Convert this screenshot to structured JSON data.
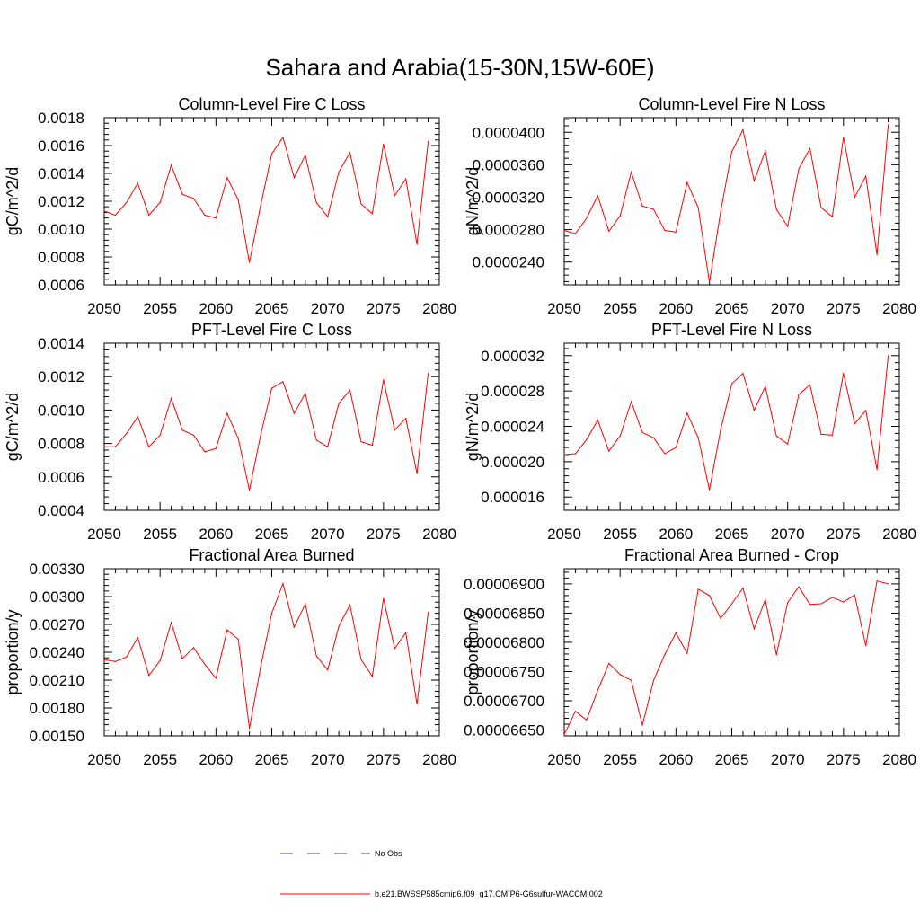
{
  "page_title": "Sahara and Arabia(15-30N,15W-60E)",
  "chart_data": [
    {
      "type": "line",
      "title": "Column-Level Fire C Loss",
      "ylabel": "gC/m^2/d",
      "xlim": [
        2050,
        2080
      ],
      "ylim": [
        0.0006,
        0.0018
      ],
      "x_ticks": [
        "2050",
        "2055",
        "2060",
        "2065",
        "2070",
        "2075",
        "2080"
      ],
      "y_ticks": [
        "0.0006",
        "0.0008",
        "0.0010",
        "0.0012",
        "0.0014",
        "0.0016",
        "0.0018"
      ],
      "x": [
        2050,
        2051,
        2052,
        2053,
        2054,
        2055,
        2056,
        2057,
        2058,
        2059,
        2060,
        2061,
        2062,
        2063,
        2064,
        2065,
        2066,
        2067,
        2068,
        2069,
        2070,
        2071,
        2072,
        2073,
        2074,
        2075,
        2076,
        2077,
        2078,
        2079
      ],
      "series": [
        {
          "name": "b.e21.BWSSP585cmip6.f09_g17.CMIP6-G6sulfur-WACCM.002",
          "color": "#ff0000",
          "values": [
            0.00113,
            0.0011,
            0.00119,
            0.00133,
            0.0011,
            0.00119,
            0.00146,
            0.00125,
            0.00122,
            0.0011,
            0.00108,
            0.00137,
            0.00121,
            0.00076,
            0.00117,
            0.00154,
            0.00166,
            0.00137,
            0.00153,
            0.00119,
            0.00109,
            0.00141,
            0.00155,
            0.00118,
            0.00111,
            0.00161,
            0.00124,
            0.00136,
            0.00089,
            0.00163
          ]
        }
      ]
    },
    {
      "type": "line",
      "title": "Column-Level Fire N Loss",
      "ylabel": "gN/m^2/d",
      "xlim": [
        2050,
        2080
      ],
      "ylim": [
        2.12e-05,
        4.18e-05
      ],
      "x_ticks": [
        "2050",
        "2055",
        "2060",
        "2065",
        "2070",
        "2075",
        "2080"
      ],
      "y_ticks": [
        "0.0000240",
        "0.0000280",
        "0.0000320",
        "0.0000360",
        "0.0000400"
      ],
      "x": [
        2050,
        2051,
        2052,
        2053,
        2054,
        2055,
        2056,
        2057,
        2058,
        2059,
        2060,
        2061,
        2062,
        2063,
        2064,
        2065,
        2066,
        2067,
        2068,
        2069,
        2070,
        2071,
        2072,
        2073,
        2074,
        2075,
        2076,
        2077,
        2078,
        2079
      ],
      "series": [
        {
          "name": "b.e21.BWSSP585cmip6.f09_g17.CMIP6-G6sulfur-WACCM.002",
          "color": "#ff0000",
          "values": [
            2.79e-05,
            2.75e-05,
            2.94e-05,
            3.22e-05,
            2.78e-05,
            2.97e-05,
            3.51e-05,
            3.09e-05,
            3.05e-05,
            2.79e-05,
            2.77e-05,
            3.38e-05,
            3.07e-05,
            2.15e-05,
            3.02e-05,
            3.76e-05,
            4.03e-05,
            3.4e-05,
            3.77e-05,
            3.05e-05,
            2.84e-05,
            3.55e-05,
            3.8e-05,
            3.07e-05,
            2.96e-05,
            3.94e-05,
            3.2e-05,
            3.46e-05,
            2.49e-05,
            4.09e-05
          ]
        }
      ]
    },
    {
      "type": "line",
      "title": "PFT-Level Fire C Loss",
      "ylabel": "gC/m^2/d",
      "xlim": [
        2050,
        2080
      ],
      "ylim": [
        0.0004,
        0.0014
      ],
      "x_ticks": [
        "2050",
        "2055",
        "2060",
        "2065",
        "2070",
        "2075",
        "2080"
      ],
      "y_ticks": [
        "0.0004",
        "0.0006",
        "0.0008",
        "0.0010",
        "0.0012",
        "0.0014"
      ],
      "x": [
        2050,
        2051,
        2052,
        2053,
        2054,
        2055,
        2056,
        2057,
        2058,
        2059,
        2060,
        2061,
        2062,
        2063,
        2064,
        2065,
        2066,
        2067,
        2068,
        2069,
        2070,
        2071,
        2072,
        2073,
        2074,
        2075,
        2076,
        2077,
        2078,
        2079
      ],
      "series": [
        {
          "name": "b.e21.BWSSP585cmip6.f09_g17.CMIP6-G6sulfur-WACCM.002",
          "color": "#ff0000",
          "values": [
            0.00078,
            0.00078,
            0.00086,
            0.00096,
            0.00078,
            0.00085,
            0.00107,
            0.00088,
            0.00085,
            0.00075,
            0.00077,
            0.00098,
            0.00083,
            0.00052,
            0.00085,
            0.00113,
            0.00117,
            0.00098,
            0.0011,
            0.00082,
            0.00078,
            0.00104,
            0.00112,
            0.00081,
            0.00079,
            0.00118,
            0.00088,
            0.00095,
            0.00062,
            0.00122
          ]
        }
      ]
    },
    {
      "type": "line",
      "title": "PFT-Level Fire N Loss",
      "ylabel": "gN/m^2/d",
      "xlim": [
        2050,
        2080
      ],
      "ylim": [
        1.45e-05,
        3.34e-05
      ],
      "x_ticks": [
        "2050",
        "2055",
        "2060",
        "2065",
        "2070",
        "2075",
        "2080"
      ],
      "y_ticks": [
        "0.000016",
        "0.000020",
        "0.000024",
        "0.000028",
        "0.000032"
      ],
      "x": [
        2050,
        2051,
        2052,
        2053,
        2054,
        2055,
        2056,
        2057,
        2058,
        2059,
        2060,
        2061,
        2062,
        2063,
        2064,
        2065,
        2066,
        2067,
        2068,
        2069,
        2070,
        2071,
        2072,
        2073,
        2074,
        2075,
        2076,
        2077,
        2078,
        2079
      ],
      "series": [
        {
          "name": "b.e21.BWSSP585cmip6.f09_g17.CMIP6-G6sulfur-WACCM.002",
          "color": "#ff0000",
          "values": [
            2.08e-05,
            2.09e-05,
            2.25e-05,
            2.47e-05,
            2.12e-05,
            2.29e-05,
            2.68e-05,
            2.33e-05,
            2.27e-05,
            2.09e-05,
            2.16e-05,
            2.55e-05,
            2.27e-05,
            1.68e-05,
            2.36e-05,
            2.88e-05,
            3e-05,
            2.58e-05,
            2.85e-05,
            2.29e-05,
            2.2e-05,
            2.76e-05,
            2.87e-05,
            2.31e-05,
            2.3e-05,
            3e-05,
            2.43e-05,
            2.58e-05,
            1.91e-05,
            3.2e-05
          ]
        }
      ]
    },
    {
      "type": "line",
      "title": "Fractional Area Burned",
      "ylabel": "proportion/y",
      "xlim": [
        2050,
        2080
      ],
      "ylim": [
        0.0015,
        0.0033
      ],
      "x_ticks": [
        "2050",
        "2055",
        "2060",
        "2065",
        "2070",
        "2075",
        "2080"
      ],
      "y_ticks": [
        "0.00150",
        "0.00180",
        "0.00210",
        "0.00240",
        "0.00270",
        "0.00300",
        "0.00330"
      ],
      "x": [
        2050,
        2051,
        2052,
        2053,
        2054,
        2055,
        2056,
        2057,
        2058,
        2059,
        2060,
        2061,
        2062,
        2063,
        2064,
        2065,
        2066,
        2067,
        2068,
        2069,
        2070,
        2071,
        2072,
        2073,
        2074,
        2075,
        2076,
        2077,
        2078,
        2079
      ],
      "series": [
        {
          "name": "b.e21.BWSSP585cmip6.f09_g17.CMIP6-G6sulfur-WACCM.002",
          "color": "#ff0000",
          "values": [
            0.00232,
            0.0023,
            0.00235,
            0.00256,
            0.00215,
            0.00231,
            0.00272,
            0.00233,
            0.00245,
            0.00227,
            0.00212,
            0.00264,
            0.00254,
            0.00158,
            0.00224,
            0.00282,
            0.00314,
            0.00267,
            0.00292,
            0.00236,
            0.00221,
            0.00268,
            0.00291,
            0.00232,
            0.00214,
            0.00298,
            0.00244,
            0.00261,
            0.00184,
            0.00283
          ]
        }
      ]
    },
    {
      "type": "line",
      "title": "Fractional Area Burned - Crop",
      "ylabel": "proportion/y",
      "xlim": [
        2050,
        2080
      ],
      "ylim": [
        6.64e-05,
        6.926e-05
      ],
      "x_ticks": [
        "2050",
        "2055",
        "2060",
        "2065",
        "2070",
        "2075",
        "2080"
      ],
      "y_ticks": [
        "0.00006650",
        "0.00006700",
        "0.00006750",
        "0.00006800",
        "0.00006850",
        "0.00006900"
      ],
      "x": [
        2050,
        2051,
        2052,
        2053,
        2054,
        2055,
        2056,
        2057,
        2058,
        2059,
        2060,
        2061,
        2062,
        2063,
        2064,
        2065,
        2066,
        2067,
        2068,
        2069,
        2070,
        2071,
        2072,
        2073,
        2074,
        2075,
        2076,
        2077,
        2078,
        2079
      ],
      "series": [
        {
          "name": "b.e21.BWSSP585cmip6.f09_g17.CMIP6-G6sulfur-WACCM.002",
          "color": "#ff0000",
          "values": [
            6.642e-05,
            6.682e-05,
            6.667e-05,
            6.718e-05,
            6.764e-05,
            6.745e-05,
            6.735e-05,
            6.658e-05,
            6.735e-05,
            6.779e-05,
            6.816e-05,
            6.781e-05,
            6.891e-05,
            6.88e-05,
            6.841e-05,
            6.866e-05,
            6.893e-05,
            6.823e-05,
            6.873e-05,
            6.779e-05,
            6.868e-05,
            6.895e-05,
            6.865e-05,
            6.866e-05,
            6.877e-05,
            6.869e-05,
            6.881e-05,
            6.794e-05,
            6.905e-05,
            6.9e-05
          ]
        }
      ]
    }
  ],
  "legend": {
    "placement": "bottom-center",
    "items": [
      {
        "label": "No Obs",
        "color": "#3a3aa8",
        "style": "dashed"
      },
      {
        "label": "b.e21.BWSSP585cmip6.f09_g17.CMIP6-G6sulfur-WACCM.002",
        "color": "#ff0000",
        "style": "solid"
      }
    ]
  }
}
